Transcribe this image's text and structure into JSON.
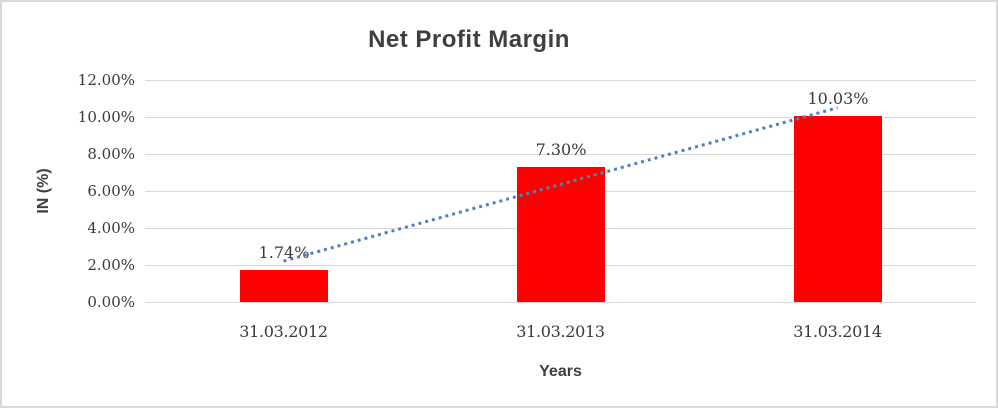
{
  "chart_data": {
    "type": "bar",
    "title": "Net Profit Margin",
    "xlabel": "Years",
    "ylabel": "IN (%)",
    "categories": [
      "31.03.2012",
      "31.03.2013",
      "31.03.2014"
    ],
    "series": [
      {
        "name": "Net Profit Margin",
        "values": [
          1.74,
          7.3,
          10.03
        ]
      }
    ],
    "data_labels": [
      "1.74%",
      "7.30%",
      "10.03%"
    ],
    "ylim": [
      0,
      12
    ],
    "ytick_step": 2,
    "ytick_labels": [
      "0.00%",
      "2.00%",
      "4.00%",
      "6.00%",
      "8.00%",
      "10.00%",
      "12.00%"
    ],
    "grid": true,
    "legend": "none",
    "colors": {
      "bar": "#ff0000",
      "trendline": "#4f81bd",
      "gridline": "#d9d9d9",
      "text": "#3f3f3f",
      "frame_border": "#d9d9d9",
      "background": "#ffffff"
    },
    "trendline": {
      "type": "linear",
      "style": "dotted"
    }
  }
}
